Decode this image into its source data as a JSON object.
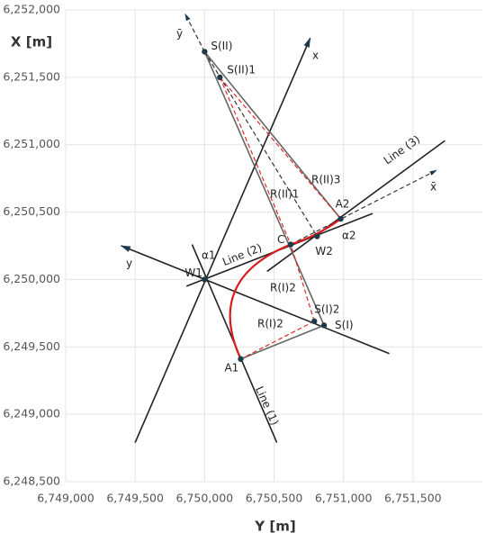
{
  "chart_data": {
    "type": "geometry",
    "xlabel": "Y [m]",
    "ylabel": "X [m]",
    "xlim": [
      6749000,
      6752000
    ],
    "ylim": [
      6248500,
      6252000
    ],
    "xticks": [
      {
        "value": 6749000,
        "label": "6,749,000"
      },
      {
        "value": 6749500,
        "label": "6,749,500"
      },
      {
        "value": 6750000,
        "label": "6,750,000"
      },
      {
        "value": 6750500,
        "label": "6,750,500"
      },
      {
        "value": 6751000,
        "label": "6,751,000"
      },
      {
        "value": 6751500,
        "label": "6,751,500"
      }
    ],
    "yticks": [
      {
        "value": 6248500,
        "label": "6,248,500"
      },
      {
        "value": 6249000,
        "label": "6,249,000"
      },
      {
        "value": 6249500,
        "label": "6,249,500"
      },
      {
        "value": 6250000,
        "label": "6,250,000"
      },
      {
        "value": 6250500,
        "label": "6,250,500"
      },
      {
        "value": 6251000,
        "label": "6,251,000"
      },
      {
        "value": 6251500,
        "label": "6,251,500"
      },
      {
        "value": 6252000,
        "label": "6,252,000"
      }
    ],
    "grid": true,
    "segments": [
      {
        "x": [
          6749910,
          6750520
        ],
        "y": [
          6250260,
          6248790
        ],
        "color": "#222222",
        "dashed": false,
        "arrow": false
      },
      {
        "x": [
          6749500,
          6750760
        ],
        "y": [
          6248790,
          6251790
        ],
        "color": "#222222",
        "dashed": false,
        "arrow": true
      },
      {
        "x": [
          6751330,
          6749400
        ],
        "y": [
          6249450,
          6250250
        ],
        "color": "#222222",
        "dashed": false,
        "arrow": true
      },
      {
        "x": [
          6749870,
          6751210
        ],
        "y": [
          6249950,
          6250490
        ],
        "color": "#222222",
        "dashed": false,
        "arrow": false
      },
      {
        "x": [
          6750450,
          6751730
        ],
        "y": [
          6250060,
          6251030
        ],
        "color": "#222222",
        "dashed": false,
        "arrow": false
      },
      {
        "x": [
          6750000,
          6750980
        ],
        "y": [
          6251690,
          6250450
        ],
        "color": "#666666",
        "dashed": false,
        "arrow": false
      },
      {
        "x": [
          6750000,
          6750860
        ],
        "y": [
          6251690,
          6249660
        ],
        "color": "#666666",
        "dashed": false,
        "arrow": false
      },
      {
        "x": [
          6750860,
          6750260
        ],
        "y": [
          6249660,
          6249410
        ],
        "color": "#666666",
        "dashed": false,
        "arrow": false
      },
      {
        "x": [
          6750000,
          6749860
        ],
        "y": [
          6251690,
          6251970
        ],
        "color": "#333333",
        "dashed": true,
        "arrow": true
      },
      {
        "x": [
          6750620,
          6751670
        ],
        "y": [
          6250260,
          6250810
        ],
        "color": "#333333",
        "dashed": true,
        "arrow": true
      },
      {
        "x": [
          6750000,
          6750810
        ],
        "y": [
          6251690,
          6250320
        ],
        "color": "#333333",
        "dashed": true,
        "arrow": false
      },
      {
        "x": [
          6750110,
          6750620
        ],
        "y": [
          6251500,
          6250260
        ],
        "color": "#e02b2b",
        "dashed": true,
        "arrow": false
      },
      {
        "x": [
          6750110,
          6750980
        ],
        "y": [
          6251500,
          6250450
        ],
        "color": "#e02b2b",
        "dashed": true,
        "arrow": false
      },
      {
        "x": [
          6750790,
          6750260
        ],
        "y": [
          6249690,
          6249410
        ],
        "color": "#e02b2b",
        "dashed": true,
        "arrow": false
      },
      {
        "x": [
          6750790,
          6750620
        ],
        "y": [
          6249690,
          6250260
        ],
        "color": "#e02b2b",
        "dashed": true,
        "arrow": false
      }
    ],
    "arcs": [
      {
        "x": [
          6750260,
          6750000,
          6750620
        ],
        "y": [
          6249410,
          6250000,
          6250260
        ],
        "color": "#d81b1b"
      },
      {
        "x": [
          6750620,
          6750810,
          6750980
        ],
        "y": [
          6250260,
          6250320,
          6250450
        ],
        "color": "#d81b1b"
      }
    ],
    "points": [
      {
        "label": "S(II)",
        "x": 6750000,
        "y": 6251690
      },
      {
        "label": "S(II)1",
        "x": 6750110,
        "y": 6251500
      },
      {
        "label": "A2",
        "x": 6750980,
        "y": 6250450
      },
      {
        "label": "W2",
        "x": 6750810,
        "y": 6250320
      },
      {
        "label": "C",
        "x": 6750620,
        "y": 6250260
      },
      {
        "label": "S(I)2",
        "x": 6750790,
        "y": 6249690
      },
      {
        "label": "S(I)",
        "x": 6750860,
        "y": 6249660
      },
      {
        "label": "A1",
        "x": 6750260,
        "y": 6249410
      },
      {
        "label": "W1",
        "x": 6750000,
        "y": 6250000
      }
    ],
    "point_color": "#1d3a4c",
    "annotations": [
      "ȳ",
      "x",
      "R(II)1",
      "R(II)3",
      "Line (3)",
      "x̄",
      "α2",
      "α1",
      "Line (2)",
      "y",
      "R(I)2",
      "R(I)2",
      "Line (1)"
    ]
  }
}
